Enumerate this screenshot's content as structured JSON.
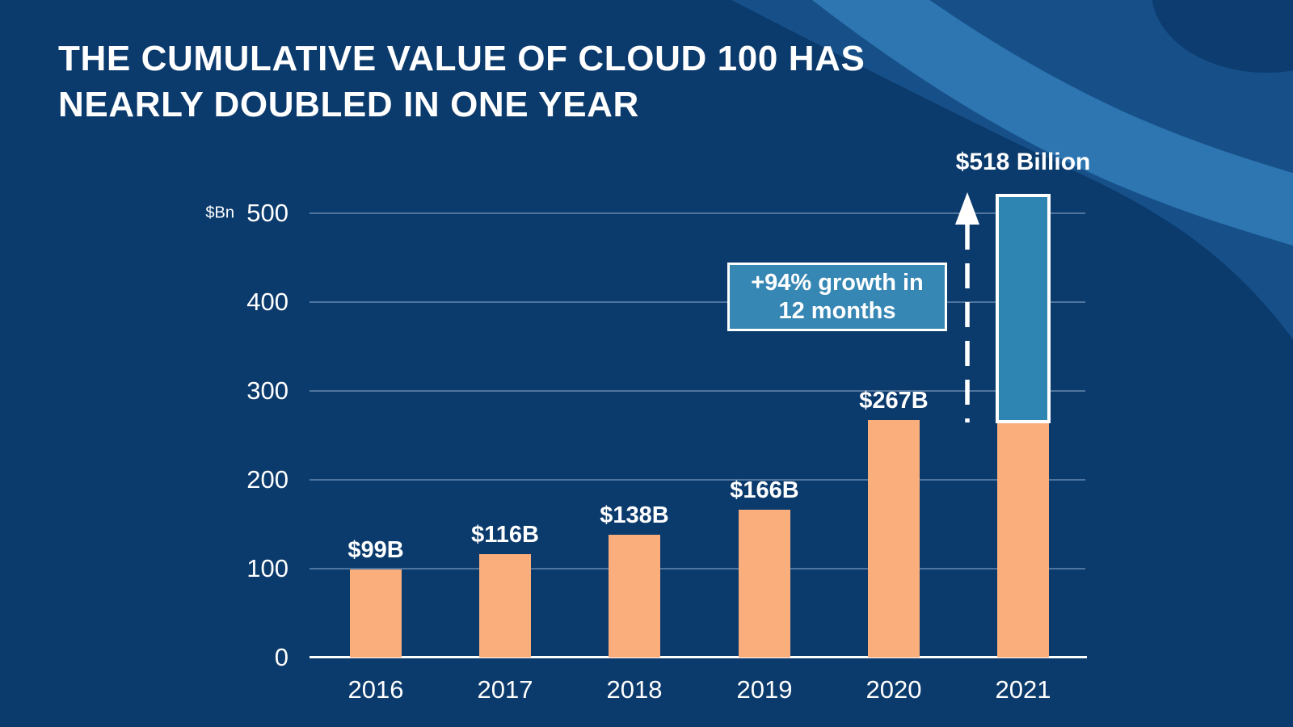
{
  "title": {
    "line1": "THE CUMULATIVE VALUE OF CLOUD 100 HAS",
    "line2": "NEARLY DOUBLED IN ONE YEAR"
  },
  "chart_data": {
    "type": "bar",
    "title": "The cumulative value of Cloud 100 has nearly doubled in one year",
    "unit_label": "$Bn",
    "categories": [
      "2016",
      "2017",
      "2018",
      "2019",
      "2020",
      "2021"
    ],
    "values": [
      99,
      116,
      138,
      166,
      267,
      518
    ],
    "value_labels": [
      "$99B",
      "$116B",
      "$138B",
      "$166B",
      "$267B",
      "$518 Billion"
    ],
    "highlight_segment": {
      "year": "2021",
      "from": 267,
      "to": 518
    },
    "annotation": {
      "line1": "+94% growth in",
      "line2": "12 months"
    },
    "yticks": [
      0,
      100,
      200,
      300,
      400,
      500
    ],
    "ylim": [
      0,
      500
    ],
    "grid": true,
    "legend": "none",
    "colors": {
      "background": "#0B3A6C",
      "bar": "#FAAE7C",
      "highlight_bar": "#2F85B2",
      "annotation_box": "#3787B4",
      "wave_mid": "#175089",
      "wave_light": "#2D76B1",
      "corner_blob": "#0C3C70",
      "text": "#FFFFFF"
    }
  }
}
